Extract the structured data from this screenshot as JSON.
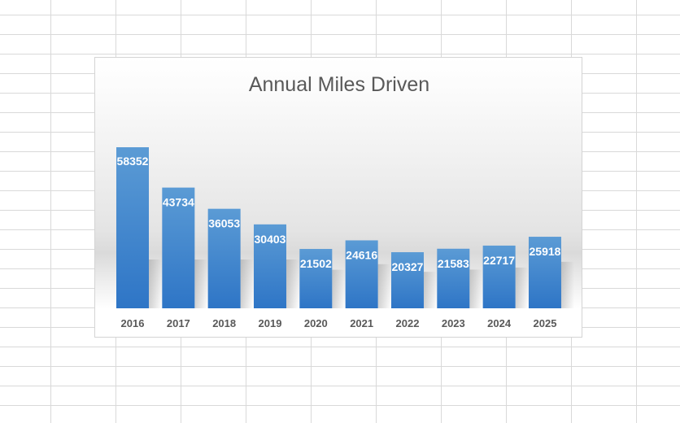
{
  "chart_data": {
    "type": "bar",
    "title": "Annual Miles Driven",
    "categories": [
      "2016",
      "2017",
      "2018",
      "2019",
      "2020",
      "2021",
      "2022",
      "2023",
      "2024",
      "2025"
    ],
    "values": [
      58352,
      43734,
      36053,
      30403,
      21502,
      24616,
      20327,
      21583,
      22717,
      25918
    ],
    "xlabel": "",
    "ylabel": "",
    "ylim": [
      0,
      58352
    ],
    "grid": false,
    "legend": "none",
    "data_labels": true,
    "colors": {
      "bar_top": "#5b9bd5",
      "bar_bottom": "#2e75c6",
      "title": "#595959",
      "tick": "#595959",
      "label": "#ffffff"
    }
  }
}
